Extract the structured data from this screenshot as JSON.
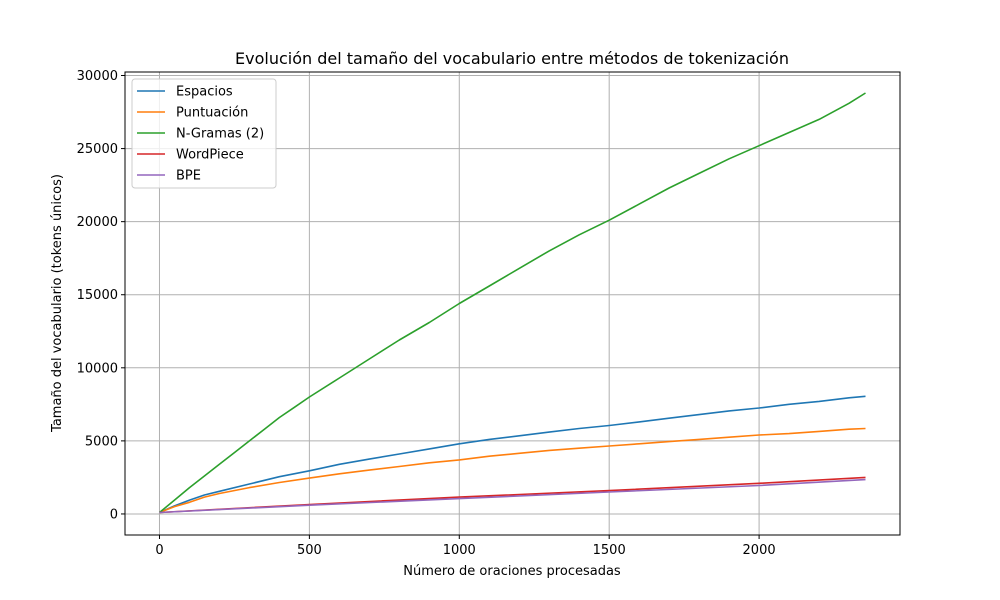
{
  "chart_data": {
    "type": "line",
    "title": "Evolución del tamaño del vocabulario entre métodos de tokenización",
    "xlabel": "Número de oraciones procesadas",
    "ylabel": "Tamaño del vocabulario (tokens únicos)",
    "xlim": [
      -115,
      2470
    ],
    "ylim": [
      -1440,
      30240
    ],
    "xticks": [
      0,
      500,
      1000,
      1500,
      2000
    ],
    "yticks": [
      0,
      5000,
      10000,
      15000,
      20000,
      25000,
      30000
    ],
    "grid": true,
    "legend_position": "top-left",
    "series": [
      {
        "name": "Espacios",
        "color": "#1f77b4",
        "x": [
          0,
          50,
          100,
          150,
          200,
          300,
          400,
          500,
          600,
          700,
          800,
          900,
          1000,
          1100,
          1200,
          1300,
          1400,
          1500,
          1600,
          1700,
          1800,
          1900,
          2000,
          2100,
          2200,
          2300,
          2355
        ],
        "y": [
          100,
          550,
          950,
          1300,
          1550,
          2050,
          2550,
          2950,
          3400,
          3750,
          4100,
          4450,
          4800,
          5100,
          5350,
          5600,
          5850,
          6050,
          6300,
          6550,
          6800,
          7050,
          7250,
          7500,
          7700,
          7950,
          8050
        ]
      },
      {
        "name": "Puntuación",
        "color": "#ff7f0e",
        "x": [
          0,
          50,
          100,
          150,
          200,
          300,
          400,
          500,
          600,
          700,
          800,
          900,
          1000,
          1100,
          1200,
          1300,
          1400,
          1500,
          1600,
          1700,
          1800,
          1900,
          2000,
          2100,
          2200,
          2300,
          2355
        ],
        "y": [
          100,
          500,
          800,
          1150,
          1400,
          1800,
          2150,
          2450,
          2750,
          3000,
          3250,
          3500,
          3700,
          3950,
          4150,
          4350,
          4500,
          4650,
          4800,
          4950,
          5100,
          5250,
          5400,
          5500,
          5650,
          5800,
          5850
        ]
      },
      {
        "name": "N-Gramas (2)",
        "color": "#2ca02c",
        "x": [
          0,
          50,
          100,
          150,
          200,
          250,
          300,
          350,
          400,
          450,
          500,
          600,
          700,
          800,
          900,
          1000,
          1100,
          1200,
          1300,
          1400,
          1500,
          1600,
          1700,
          1800,
          1900,
          2000,
          2100,
          2200,
          2300,
          2355
        ],
        "y": [
          100,
          950,
          1800,
          2600,
          3400,
          4200,
          5000,
          5800,
          6600,
          7300,
          8000,
          9300,
          10600,
          11900,
          13100,
          14400,
          15600,
          16800,
          18000,
          19100,
          20100,
          21200,
          22300,
          23300,
          24300,
          25200,
          26100,
          27000,
          28100,
          28800
        ]
      },
      {
        "name": "WordPiece",
        "color": "#d62728",
        "x": [
          0,
          500,
          1000,
          1500,
          2000,
          2355
        ],
        "y": [
          100,
          650,
          1150,
          1600,
          2100,
          2500
        ]
      },
      {
        "name": "BPE",
        "color": "#9467bd",
        "x": [
          0,
          500,
          1000,
          1500,
          2000,
          2355
        ],
        "y": [
          100,
          600,
          1050,
          1500,
          1950,
          2350
        ]
      }
    ]
  }
}
